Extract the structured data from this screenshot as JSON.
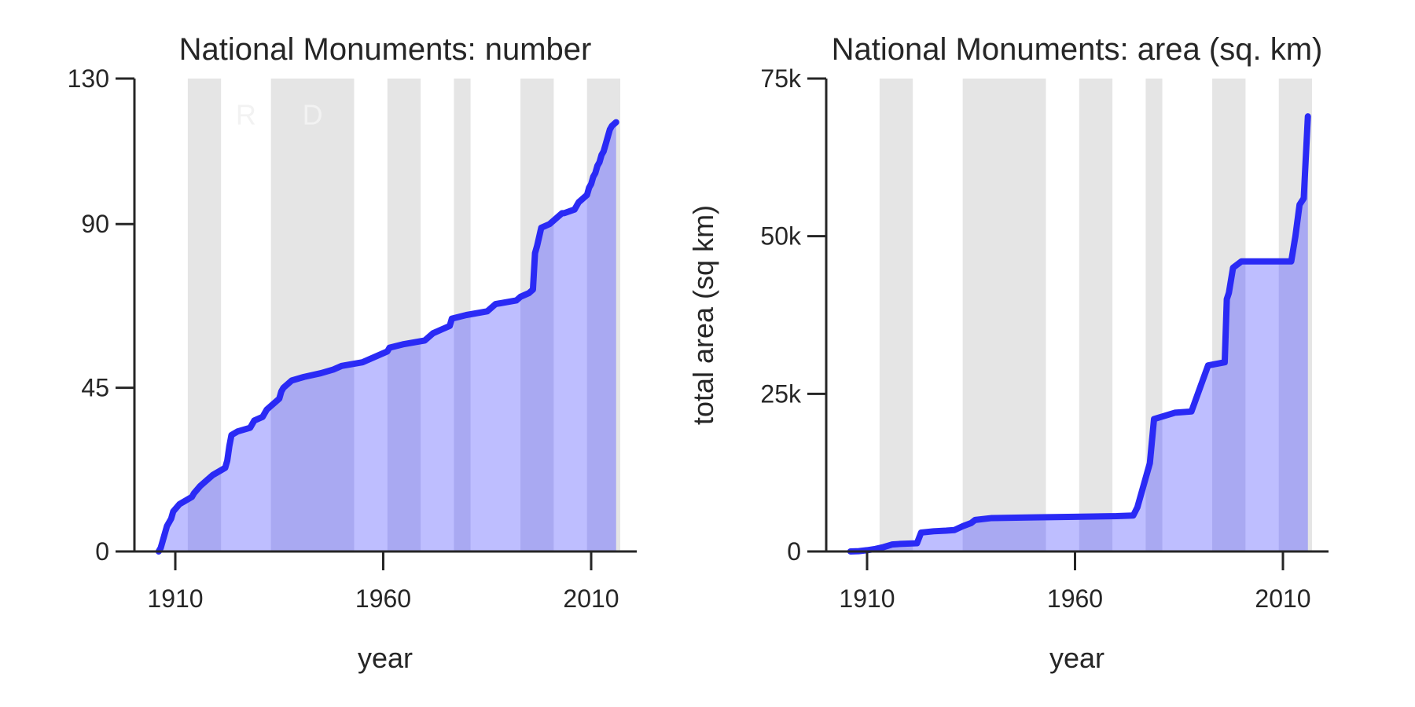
{
  "chart_data": [
    {
      "type": "area",
      "title": "National Monuments: number",
      "xlabel": "year",
      "ylabel": "",
      "xlim": [
        1890,
        2020
      ],
      "ylim": [
        0,
        130
      ],
      "xticks": [
        1910,
        1960,
        2010
      ],
      "xtick_labels": [
        "1910",
        "1960",
        "2010"
      ],
      "yticks": [
        0,
        45,
        90,
        130
      ],
      "ytick_labels": [
        "0",
        "45",
        "90",
        "130"
      ],
      "grid": false,
      "party_labels": [
        {
          "text": "R",
          "x": 1927,
          "y": 120
        },
        {
          "text": "D",
          "x": 1943,
          "y": 120
        }
      ],
      "shaded_periods": [
        [
          1913,
          1921
        ],
        [
          1933,
          1953
        ],
        [
          1961,
          1969
        ],
        [
          1977,
          1981
        ],
        [
          1993,
          2001
        ],
        [
          2009,
          2017
        ]
      ],
      "line_color": "#2a2af5",
      "fill_color": "#b3b3ff",
      "shade_color": "#e5e5e5",
      "series": [
        {
          "x": [
            1906,
            1906.5,
            1907,
            1907.5,
            1908,
            1909,
            1909.5,
            1911,
            1914,
            1914.5,
            1916,
            1917,
            1919,
            1922,
            1922.5,
            1923,
            1923.5,
            1925,
            1928,
            1929,
            1931,
            1932,
            1933,
            1935,
            1935.5,
            1936,
            1938,
            1941,
            1945,
            1948,
            1950,
            1955,
            1957,
            1959,
            1961,
            1961.5,
            1965,
            1970,
            1971,
            1972,
            1974,
            1976,
            1976.5,
            1980,
            1985,
            1986,
            1987,
            1992,
            1993,
            1995,
            1996,
            1996.5,
            1997,
            1998,
            2000,
            2001,
            2002,
            2003,
            2003.5,
            2006,
            2007,
            2008,
            2009,
            2009.5,
            2010,
            2010.5,
            2011,
            2011.5,
            2012,
            2012.5,
            2013,
            2013.5,
            2014,
            2014.5,
            2015,
            2016
          ],
          "y": [
            0,
            1,
            3,
            5,
            7,
            9,
            11,
            13,
            15,
            16,
            18,
            19,
            21,
            23,
            25,
            29,
            32,
            33,
            34,
            36,
            37,
            39,
            40,
            42,
            44,
            45,
            47,
            48,
            49,
            50,
            51,
            52,
            53,
            54,
            55,
            56,
            57,
            58,
            59,
            60,
            61,
            62,
            64,
            65,
            66,
            67,
            68,
            69,
            70,
            71,
            72,
            82,
            84,
            89,
            90,
            91,
            92,
            93,
            93,
            94,
            96,
            97,
            98,
            100,
            101,
            103,
            104,
            106,
            107,
            109,
            110,
            112,
            114,
            116,
            117,
            118
          ]
        }
      ]
    },
    {
      "type": "area",
      "title": "National Monuments: area (sq. km)",
      "xlabel": "year",
      "ylabel": "total area (sq km)",
      "xlim": [
        1890,
        2020
      ],
      "ylim": [
        0,
        75000
      ],
      "xticks": [
        1910,
        1960,
        2010
      ],
      "xtick_labels": [
        "1910",
        "1960",
        "2010"
      ],
      "yticks": [
        0,
        25000,
        50000,
        75000
      ],
      "ytick_labels": [
        "0",
        "25k",
        "50k",
        "75k"
      ],
      "grid": false,
      "shaded_periods": [
        [
          1913,
          1921
        ],
        [
          1933,
          1953
        ],
        [
          1961,
          1969
        ],
        [
          1977,
          1981
        ],
        [
          1993,
          2001
        ],
        [
          2009,
          2017
        ]
      ],
      "line_color": "#2a2af5",
      "fill_color": "#b3b3ff",
      "shade_color": "#e5e5e5",
      "series": [
        {
          "x": [
            1906,
            1908,
            1910,
            1912,
            1914,
            1916,
            1918,
            1922,
            1923,
            1926,
            1929,
            1931,
            1933,
            1935,
            1936,
            1940,
            1950,
            1960,
            1970,
            1974,
            1975,
            1978,
            1979,
            1984,
            1988,
            1992,
            1996,
            1996.5,
            1997,
            1998,
            2000,
            2003,
            2004,
            2005,
            2006,
            2009,
            2012,
            2013,
            2014,
            2015,
            2016
          ],
          "y": [
            0,
            50,
            200,
            400,
            700,
            1100,
            1200,
            1300,
            3000,
            3200,
            3300,
            3400,
            4000,
            4500,
            5000,
            5300,
            5400,
            5500,
            5600,
            5700,
            7000,
            14000,
            21000,
            22000,
            22200,
            29500,
            30000,
            40000,
            41000,
            45000,
            46000,
            46000,
            46000,
            46000,
            46000,
            46000,
            46000,
            50000,
            55000,
            56000,
            69000
          ]
        }
      ]
    }
  ]
}
